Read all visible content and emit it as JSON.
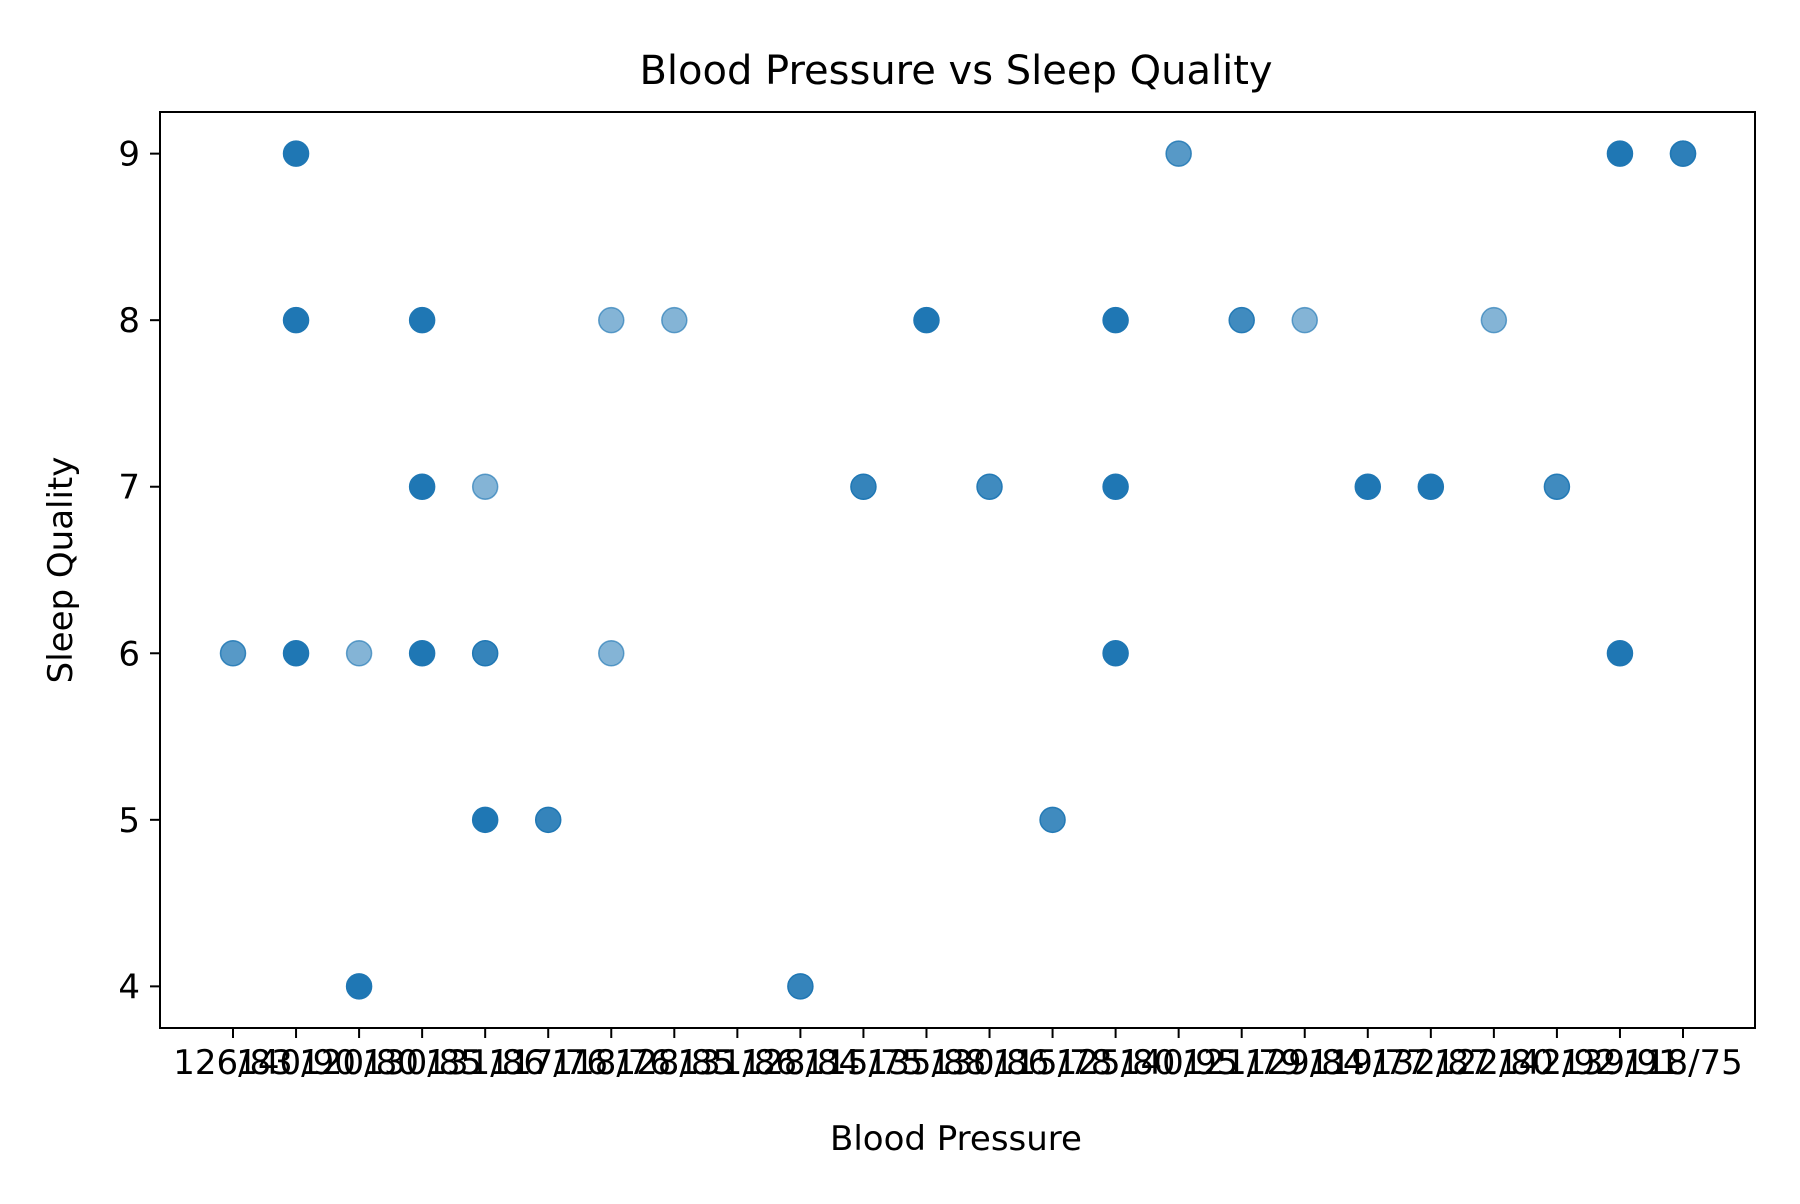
{
  "chart_data": {
    "type": "scatter",
    "title": "Blood Pressure vs Sleep Quality",
    "xlabel": "Blood Pressure",
    "ylabel": "Sleep Quality",
    "ylim": [
      3.75,
      9.25
    ],
    "y_ticks": [
      4,
      5,
      6,
      7,
      8,
      9
    ],
    "grid": false,
    "legend": null,
    "marker_color": "#1f77b4",
    "categories": [
      "126/83",
      "140/90",
      "120/80",
      "130/85",
      "131/86",
      "117/76",
      "118/76",
      "128/85",
      "131/86",
      "128/84",
      "115/75",
      "135/88",
      "130/86",
      "115/78",
      "125/80",
      "140/95",
      "121/79",
      "129/84",
      "119/77",
      "132/87",
      "122/80",
      "142/92",
      "139/91",
      "118/75"
    ],
    "x_tick_labels": [
      "126/83",
      "140/90",
      "120/80",
      "130/85",
      "131/86",
      "117/76",
      "118/76",
      "128/85",
      "131/86",
      "128/84",
      "115/75",
      "135/88",
      "130/86",
      "115/78",
      "125/80",
      "140/95",
      "121/79",
      "129/84",
      "119/77",
      "132/87",
      "122/80",
      "142/92",
      "139/91",
      "118/75"
    ],
    "points": [
      {
        "x": "126/83",
        "y": 6,
        "alpha": 0.75
      },
      {
        "x": "140/90",
        "y": 9,
        "alpha": 1
      },
      {
        "x": "140/90",
        "y": 8,
        "alpha": 1
      },
      {
        "x": "140/90",
        "y": 6,
        "alpha": 1
      },
      {
        "x": "120/80",
        "y": 6,
        "alpha": 0.55
      },
      {
        "x": "120/80",
        "y": 4,
        "alpha": 1
      },
      {
        "x": "130/85",
        "y": 8,
        "alpha": 1
      },
      {
        "x": "130/85",
        "y": 7,
        "alpha": 1
      },
      {
        "x": "130/85",
        "y": 6,
        "alpha": 1
      },
      {
        "x": "131/86",
        "y": 5,
        "alpha": 1
      },
      {
        "x": "117/76",
        "y": 5,
        "alpha": 0.9
      },
      {
        "x": "118/76",
        "y": 8,
        "alpha": 0.55
      },
      {
        "x": "118/76",
        "y": 6,
        "alpha": 0.55
      },
      {
        "x": "128/85",
        "y": 8,
        "alpha": 0.55
      },
      {
        "x": "131/86",
        "y": 7,
        "alpha": 0.55
      },
      {
        "x": "131/86",
        "y": 6,
        "alpha": 0.9
      },
      {
        "x": "128/84",
        "y": 4,
        "alpha": 0.9
      },
      {
        "x": "115/75",
        "y": 7,
        "alpha": 0.9
      },
      {
        "x": "135/88",
        "y": 8,
        "alpha": 1
      },
      {
        "x": "130/86",
        "y": 7,
        "alpha": 0.85
      },
      {
        "x": "115/78",
        "y": 5,
        "alpha": 0.85
      },
      {
        "x": "125/80",
        "y": 8,
        "alpha": 1
      },
      {
        "x": "125/80",
        "y": 7,
        "alpha": 1
      },
      {
        "x": "125/80",
        "y": 6,
        "alpha": 1
      },
      {
        "x": "140/95",
        "y": 9,
        "alpha": 0.75
      },
      {
        "x": "121/79",
        "y": 8,
        "alpha": 0.85
      },
      {
        "x": "129/84",
        "y": 8,
        "alpha": 0.55
      },
      {
        "x": "119/77",
        "y": 7,
        "alpha": 1
      },
      {
        "x": "132/87",
        "y": 7,
        "alpha": 1
      },
      {
        "x": "122/80",
        "y": 8,
        "alpha": 0.55
      },
      {
        "x": "142/92",
        "y": 7,
        "alpha": 0.85
      },
      {
        "x": "139/91",
        "y": 9,
        "alpha": 1
      },
      {
        "x": "139/91",
        "y": 6,
        "alpha": 1
      },
      {
        "x": "118/75",
        "y": 9,
        "alpha": 0.75
      },
      {
        "x": "118/75",
        "y": 9,
        "alpha": 0.75
      }
    ]
  }
}
